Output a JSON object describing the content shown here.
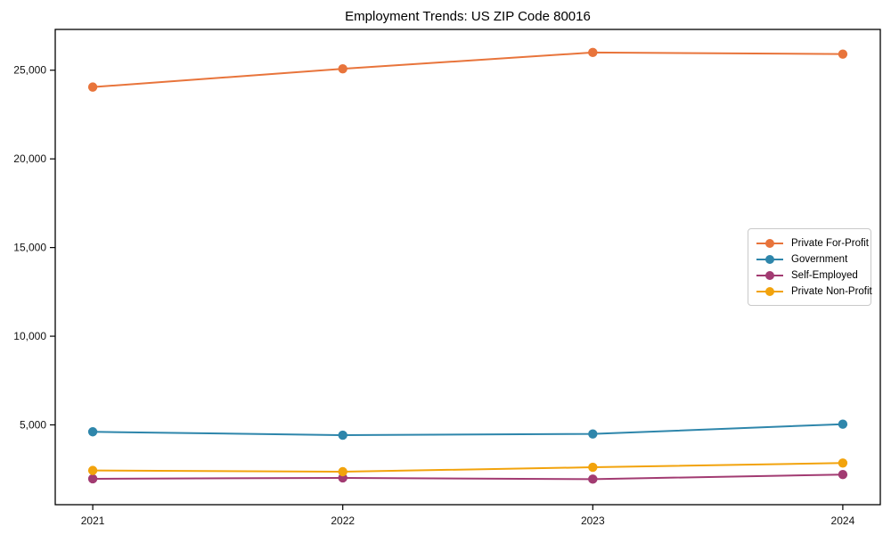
{
  "chart_data": {
    "type": "line",
    "title": "Employment Trends: US ZIP Code 80016",
    "x": [
      2021,
      2022,
      2023,
      2024
    ],
    "xtick_labels": [
      "2021",
      "2022",
      "2023",
      "2024"
    ],
    "xlabel": "",
    "ylabel": "",
    "xlim": [
      2020.85,
      2024.15
    ],
    "ylim": [
      500,
      27300
    ],
    "yticks": [
      5000,
      10000,
      15000,
      20000,
      25000
    ],
    "ytick_labels": [
      "5,000",
      "10,000",
      "15,000",
      "20,000",
      "25,000"
    ],
    "grid": false,
    "legend_position": "center-right",
    "marker": "circle",
    "series": [
      {
        "name": "Private For-Profit",
        "color": "#E8743B",
        "values": [
          24050,
          25080,
          26000,
          25910
        ]
      },
      {
        "name": "Government",
        "color": "#2E86AB",
        "values": [
          4610,
          4420,
          4490,
          5040
        ]
      },
      {
        "name": "Self-Employed",
        "color": "#A23B72",
        "values": [
          1960,
          2010,
          1940,
          2200
        ]
      },
      {
        "name": "Private Non-Profit",
        "color": "#F2A30C",
        "values": [
          2430,
          2360,
          2610,
          2850
        ]
      }
    ]
  }
}
